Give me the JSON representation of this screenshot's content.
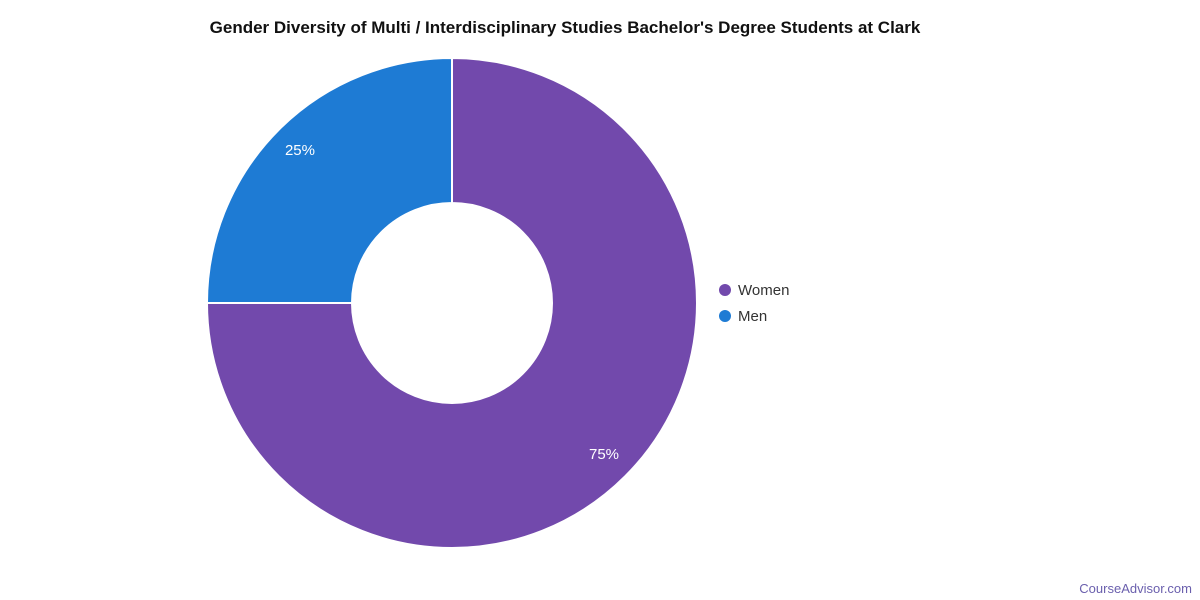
{
  "chart_data": {
    "type": "pie",
    "title": "Gender Diversity of Multi / Interdisciplinary Studies Bachelor's Degree Students at Clark",
    "categories": [
      "Women",
      "Men"
    ],
    "values": [
      75,
      25
    ],
    "data_labels": [
      "75%",
      "25%"
    ],
    "colors": [
      "#7249ac",
      "#1e7bd4"
    ],
    "donut": true,
    "inner_radius_ratio": 0.41,
    "start_angle_deg": 0,
    "direction": "clockwise",
    "legend_position": "right",
    "data_label_color": "#ffffff",
    "slice_border_color": "#ffffff"
  },
  "legend": {
    "items": [
      {
        "label": "Women",
        "color": "#7249ac"
      },
      {
        "label": "Men",
        "color": "#1e7bd4"
      }
    ]
  },
  "watermark": {
    "label": "CourseAdvisor.com",
    "color": "#6a5fad"
  }
}
